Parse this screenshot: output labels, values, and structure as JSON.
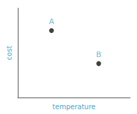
{
  "chart_data": {
    "type": "scatter",
    "x": [
      0.3,
      0.72
    ],
    "values": [
      0.75,
      0.38
    ],
    "labels": [
      "A",
      "B"
    ],
    "xlabel": "temperature",
    "ylabel": "cost",
    "color": "#111111",
    "xlim": [
      0,
      1
    ],
    "ylim": [
      0,
      1
    ],
    "tick_labels": false,
    "grid": false
  }
}
